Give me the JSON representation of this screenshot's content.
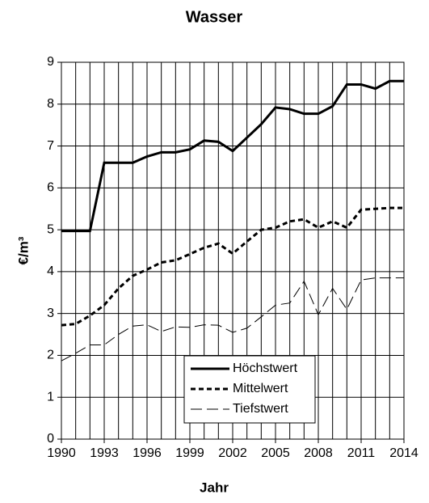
{
  "chart_data": {
    "type": "line",
    "title": "Wasser",
    "x_label": "Jahr",
    "y_label": "€/m³",
    "x": [
      1990,
      1991,
      1992,
      1993,
      1994,
      1995,
      1996,
      1997,
      1998,
      1999,
      2000,
      2001,
      2002,
      2003,
      2004,
      2005,
      2006,
      2007,
      2008,
      2009,
      2010,
      2011,
      2012,
      2013,
      2014
    ],
    "series": [
      {
        "name": "Höchstwert",
        "color": "#000000",
        "dash": "solid",
        "width": 3,
        "values": [
          4.97,
          4.97,
          4.97,
          6.6,
          6.6,
          6.6,
          6.75,
          6.85,
          6.85,
          6.92,
          7.13,
          7.1,
          6.88,
          7.2,
          7.52,
          7.92,
          7.88,
          7.77,
          7.77,
          7.95,
          8.47,
          8.47,
          8.37,
          8.55,
          8.55
        ]
      },
      {
        "name": "Mittelwert",
        "color": "#000000",
        "dash": "6,4",
        "width": 3,
        "values": [
          2.72,
          2.75,
          2.95,
          3.2,
          3.6,
          3.9,
          4.05,
          4.22,
          4.27,
          4.42,
          4.57,
          4.67,
          4.43,
          4.72,
          5.0,
          5.05,
          5.2,
          5.25,
          5.05,
          5.2,
          5.05,
          5.48,
          5.5,
          5.52,
          5.52
        ]
      },
      {
        "name": "Tiefstwert",
        "color": "#000000",
        "dash": "14,6",
        "width": 1,
        "values": [
          1.87,
          2.05,
          2.25,
          2.25,
          2.5,
          2.7,
          2.73,
          2.57,
          2.68,
          2.67,
          2.73,
          2.72,
          2.55,
          2.65,
          2.92,
          3.2,
          3.25,
          3.77,
          2.97,
          3.6,
          3.1,
          3.8,
          3.85,
          3.85,
          3.85
        ]
      }
    ],
    "xlim": [
      1990,
      2014
    ],
    "xticks": [
      1990,
      1993,
      1996,
      1999,
      2002,
      2005,
      2008,
      2011,
      2014
    ],
    "ylim": [
      0,
      9
    ],
    "yticks": [
      0,
      1,
      2,
      3,
      4,
      5,
      6,
      7,
      8,
      9
    ],
    "grid": true,
    "legend": "bottom-center"
  }
}
